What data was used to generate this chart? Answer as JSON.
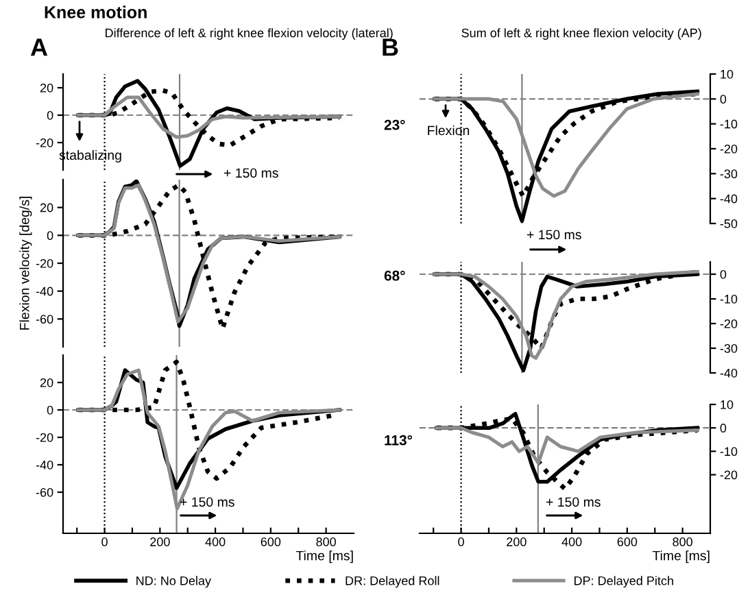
{
  "chart_data": [
    {
      "type": "line",
      "title": "Difference of left & right knee flexion velocity (lateral)",
      "xlim": [
        -150,
        900
      ],
      "ylim": [
        -40,
        30
      ],
      "yticks": [
        -20,
        0,
        20
      ],
      "tick_labels": "y",
      "grid": false,
      "marker": "none",
      "series": [
        {
          "color": "#000000",
          "line_style": "solid",
          "x": [
            -95,
            0,
            18,
            42,
            74,
            119,
            147,
            195,
            235,
            273,
            308,
            356,
            405,
            442,
            486,
            542,
            631,
            848
          ],
          "values": [
            0,
            0,
            1,
            13,
            21,
            25,
            19,
            4,
            -16,
            -37,
            -32,
            -10,
            2,
            5,
            3,
            -3,
            -2,
            -1
          ]
        },
        {
          "color": "#000000",
          "line_style": "dotted",
          "x": [
            -95,
            0,
            20,
            50,
            98,
            163,
            211,
            244,
            284,
            324,
            373,
            413,
            453,
            502,
            566,
            631,
            848
          ],
          "values": [
            0,
            0,
            0,
            2,
            8,
            17,
            18,
            16,
            4,
            -5,
            -15,
            -21,
            -22,
            -16,
            -8,
            -3,
            -2
          ]
        },
        {
          "color": "#8c8c8c",
          "line_style": "solid",
          "x": [
            -95,
            0,
            34,
            82,
            123,
            163,
            211,
            260,
            300,
            340,
            389,
            437,
            502,
            848
          ],
          "values": [
            0,
            0,
            6,
            13,
            13,
            2,
            -10,
            -16,
            -15,
            -11,
            -3,
            -1,
            -2,
            -1
          ]
        }
      ],
      "ref_lines": [
        {
          "axis": "x",
          "value": 0,
          "line_style": "dotted",
          "color": "#000000"
        },
        {
          "axis": "y",
          "value": 0,
          "line_style": "dashed",
          "color": "#808080"
        },
        {
          "axis": "x",
          "value": 271,
          "line_style": "solid",
          "color": "#808080"
        }
      ],
      "annotations": [
        "Knee motion",
        "A",
        "+ 150 ms",
        "stabalizing"
      ]
    },
    {
      "type": "line",
      "ylabel": "Flexion velocity [deg/s]",
      "xlim": [
        -150,
        900
      ],
      "ylim": [
        -80,
        40
      ],
      "yticks": [
        -60,
        -40,
        -20,
        0,
        20
      ],
      "tick_labels": "y",
      "grid": false,
      "marker": "none",
      "series": [
        {
          "color": "#000000",
          "line_style": "solid",
          "x": [
            -95,
            0,
            20,
            34,
            50,
            74,
            98,
            115,
            147,
            179,
            211,
            235,
            260,
            270,
            300,
            324,
            373,
            421,
            502,
            631,
            848
          ],
          "values": [
            0,
            0,
            3,
            6,
            24,
            35,
            36,
            39,
            26,
            10,
            -15,
            -35,
            -54,
            -65,
            -50,
            -31,
            -10,
            -2,
            -1,
            -5,
            -1
          ]
        },
        {
          "color": "#000000",
          "line_style": "dotted",
          "x": [
            -95,
            0,
            18,
            82,
            147,
            195,
            235,
            268,
            292,
            324,
            356,
            389,
            426,
            469,
            518,
            582,
            631,
            848
          ],
          "values": [
            0,
            0,
            0,
            3,
            8,
            21,
            32,
            36,
            31,
            11,
            -15,
            -41,
            -67,
            -41,
            -22,
            -5,
            -2,
            -1
          ]
        },
        {
          "color": "#8c8c8c",
          "line_style": "solid",
          "x": [
            -95,
            0,
            34,
            50,
            74,
            98,
            123,
            147,
            179,
            211,
            235,
            265,
            300,
            324,
            356,
            389,
            421,
            502,
            631,
            848
          ],
          "values": [
            0,
            0,
            5,
            23,
            34,
            34,
            36,
            25,
            8,
            -16,
            -36,
            -62,
            -52,
            -38,
            -20,
            -7,
            -2,
            -1,
            -4,
            -1
          ]
        }
      ],
      "ref_lines": [
        {
          "axis": "x",
          "value": 0,
          "line_style": "dotted",
          "color": "#000000"
        },
        {
          "axis": "y",
          "value": 0,
          "line_style": "dashed",
          "color": "#808080"
        },
        {
          "axis": "x",
          "value": 270,
          "line_style": "solid",
          "color": "#808080"
        }
      ]
    },
    {
      "type": "line",
      "xlabel": "Time [ms]",
      "xlim": [
        -150,
        900
      ],
      "ylim": [
        -90,
        40
      ],
      "xticks": [
        {
          "value": -100,
          "label": null
        },
        0,
        {
          "value": 100,
          "label": null
        },
        200,
        {
          "value": 300,
          "label": null
        },
        400,
        {
          "value": 500,
          "label": null
        },
        600,
        {
          "value": 700,
          "label": null
        },
        800
      ],
      "yticks": [
        -60,
        -40,
        -20,
        0,
        20
      ],
      "grid": false,
      "marker": "none",
      "legend": "bottom",
      "series": [
        {
          "name": "ND: No Delay",
          "color": "#000000",
          "line_style": "solid",
          "x": [
            -95,
            0,
            26,
            42,
            74,
            115,
            139,
            155,
            179,
            195,
            219,
            260,
            308,
            373,
            437,
            534,
            631,
            848
          ],
          "values": [
            0,
            0,
            3,
            6,
            29,
            22,
            20,
            -9,
            -12,
            -13,
            -34,
            -57,
            -39,
            -21,
            -14,
            -8,
            -4,
            0
          ]
        },
        {
          "name": "DR: Delayed Roll",
          "color": "#000000",
          "line_style": "dotted",
          "x": [
            -95,
            0,
            115,
            179,
            219,
            260,
            284,
            308,
            340,
            373,
            405,
            453,
            502,
            566,
            695,
            824
          ],
          "values": [
            0,
            0,
            0,
            2,
            29,
            35,
            22,
            2,
            -27,
            -45,
            -50,
            -42,
            -27,
            -13,
            -9,
            -4
          ]
        },
        {
          "name": "DP: Delayed Pitch",
          "color": "#8c8c8c",
          "line_style": "solid",
          "x": [
            -95,
            0,
            26,
            50,
            82,
            123,
            155,
            195,
            219,
            250,
            262,
            300,
            340,
            389,
            437,
            470,
            534,
            631,
            848
          ],
          "values": [
            0,
            0,
            3,
            15,
            26,
            29,
            -2,
            -12,
            -30,
            -60,
            -72,
            -55,
            -30,
            -12,
            -2,
            -1,
            -8,
            -2,
            0
          ]
        }
      ],
      "ref_lines": [
        {
          "axis": "x",
          "value": 0,
          "line_style": "dotted",
          "color": "#000000"
        },
        {
          "axis": "y",
          "value": 0,
          "line_style": "dashed",
          "color": "#808080"
        },
        {
          "axis": "x",
          "value": 260,
          "line_style": "solid",
          "color": "#808080"
        }
      ],
      "annotations": [
        "+ 150 ms"
      ]
    },
    {
      "type": "line",
      "title": "Sum of left & right knee flexion velocity (AP)",
      "xlim": [
        -150,
        900
      ],
      "ylim": [
        -50,
        10
      ],
      "yticks": [
        10,
        0,
        -10,
        -20,
        -30,
        -40,
        -50
      ],
      "tick_labels": "y",
      "grid": false,
      "marker": "none",
      "series": [
        {
          "color": "#000000",
          "line_style": "solid",
          "x": [
            -95,
            0,
            40,
            88,
            136,
            168,
            200,
            220,
            248,
            279,
            327,
            391,
            471,
            599,
            711,
            854
          ],
          "values": [
            0,
            0,
            -4,
            -12,
            -21,
            -30,
            -43,
            -49,
            -37,
            -25,
            -12,
            -5,
            -3,
            0,
            2,
            3
          ]
        },
        {
          "color": "#000000",
          "line_style": "dotted",
          "x": [
            -95,
            0,
            40,
            88,
            136,
            168,
            200,
            224,
            263,
            311,
            359,
            407,
            471,
            567,
            711,
            854
          ],
          "values": [
            0,
            0,
            -4,
            -11,
            -20,
            -27,
            -34,
            -39,
            -31,
            -23,
            -15,
            -10,
            -5,
            -1,
            1,
            2
          ]
        },
        {
          "color": "#8c8c8c",
          "line_style": "solid",
          "x": [
            -95,
            0,
            100,
            152,
            200,
            240,
            271,
            295,
            335,
            375,
            423,
            471,
            535,
            599,
            695,
            854
          ],
          "values": [
            0,
            0,
            0,
            -1,
            -8,
            -21,
            -31,
            -36,
            -39,
            -37,
            -28,
            -21,
            -12,
            -4,
            0,
            2
          ]
        }
      ],
      "ref_lines": [
        {
          "axis": "x",
          "value": 0,
          "line_style": "dotted",
          "color": "#000000"
        },
        {
          "axis": "y",
          "value": 0,
          "line_style": "dashed",
          "color": "#808080"
        },
        {
          "axis": "x",
          "value": 220,
          "line_style": "solid",
          "color": "#808080"
        }
      ],
      "annotations": [
        "B",
        "23°",
        "+ 150 ms",
        "Flexion"
      ]
    },
    {
      "type": "line",
      "xlim": [
        -150,
        900
      ],
      "ylim": [
        -40,
        5
      ],
      "yticks": [
        0,
        -10,
        -20,
        -30,
        -40
      ],
      "tick_labels": "y",
      "grid": false,
      "marker": "none",
      "series": [
        {
          "color": "#000000",
          "line_style": "solid",
          "x": [
            -95,
            0,
            40,
            88,
            136,
            168,
            200,
            225,
            250,
            270,
            290,
            311,
            340,
            420,
            520,
            600,
            700,
            854
          ],
          "values": [
            0,
            0,
            -3,
            -10,
            -18,
            -25,
            -33,
            -39,
            -30,
            -15,
            -5,
            -1,
            -2,
            -5,
            -4,
            -3,
            -1,
            0
          ]
        },
        {
          "color": "#000000",
          "line_style": "dotted",
          "x": [
            -95,
            0,
            60,
            100,
            150,
            200,
            250,
            290,
            311,
            335,
            360,
            420,
            480,
            540,
            600,
            700,
            854
          ],
          "values": [
            0,
            0,
            -3,
            -8,
            -14,
            -20,
            -25,
            -30,
            -24,
            -17,
            -12,
            -10,
            -10,
            -9,
            -6,
            -2,
            1
          ]
        },
        {
          "color": "#8c8c8c",
          "line_style": "solid",
          "x": [
            -95,
            0,
            50,
            100,
            150,
            200,
            235,
            255,
            270,
            300,
            330,
            360,
            400,
            450,
            550,
            700,
            854
          ],
          "values": [
            0,
            0,
            -1,
            -5,
            -10,
            -17,
            -25,
            -33,
            -34,
            -28,
            -18,
            -10,
            -5,
            -3,
            -2,
            0,
            1
          ]
        }
      ],
      "ref_lines": [
        {
          "axis": "x",
          "value": 0,
          "line_style": "dotted",
          "color": "#000000"
        },
        {
          "axis": "y",
          "value": 0,
          "line_style": "dashed",
          "color": "#808080"
        },
        {
          "axis": "x",
          "value": 220,
          "line_style": "solid",
          "color": "#808080"
        }
      ],
      "annotations": [
        "68°"
      ]
    },
    {
      "type": "line",
      "xlabel": "Time [ms]",
      "xlim": [
        -150,
        900
      ],
      "ylim": [
        -45,
        10
      ],
      "xticks": [
        {
          "value": -100,
          "label": null
        },
        0,
        {
          "value": 100,
          "label": null
        },
        200,
        {
          "value": 300,
          "label": null
        },
        400,
        {
          "value": 500,
          "label": null
        },
        600,
        {
          "value": 700,
          "label": null
        },
        800
      ],
      "yticks": [
        10,
        0,
        -10,
        -20
      ],
      "grid": false,
      "marker": "none",
      "series": [
        {
          "color": "#000000",
          "line_style": "solid",
          "x": [
            -88,
            0,
            104,
            152,
            184,
            196,
            224,
            256,
            279,
            311,
            359,
            423,
            503,
            583,
            711,
            854
          ],
          "values": [
            0,
            0,
            0,
            2,
            5,
            6,
            -4,
            -16,
            -23,
            -23,
            -18,
            -12,
            -5,
            -3,
            -1,
            0
          ]
        },
        {
          "color": "#000000",
          "line_style": "dotted",
          "x": [
            -88,
            0,
            50,
            100,
            136,
            184,
            224,
            264,
            311,
            375,
            407,
            455,
            519,
            631,
            854
          ],
          "values": [
            0,
            0,
            1,
            2,
            3,
            4,
            -2,
            -12,
            -19,
            -26,
            -21,
            -11,
            -5,
            -3,
            -1
          ]
        },
        {
          "color": "#8c8c8c",
          "line_style": "solid",
          "x": [
            -88,
            0,
            40,
            100,
            150,
            184,
            210,
            240,
            279,
            311,
            359,
            423,
            503,
            631,
            854
          ],
          "values": [
            0,
            0,
            -2,
            -4,
            -8,
            -6,
            -10,
            -8,
            -15,
            -4,
            -8,
            -10,
            -4,
            -2,
            -1
          ]
        }
      ],
      "ref_lines": [
        {
          "axis": "x",
          "value": 0,
          "line_style": "dotted",
          "color": "#000000"
        },
        {
          "axis": "y",
          "value": 0,
          "line_style": "dashed",
          "color": "#808080"
        },
        {
          "axis": "x",
          "value": 278,
          "line_style": "solid",
          "color": "#808080"
        }
      ],
      "annotations": [
        "113°",
        "+ 150 ms"
      ]
    }
  ]
}
